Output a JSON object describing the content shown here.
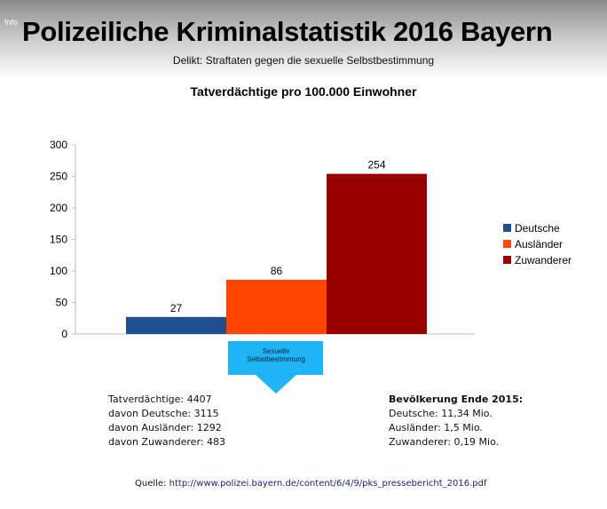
{
  "header": {
    "info": "Info",
    "title": "Polizeiliche Kriminalstatistik 2016 Bayern",
    "subtitle": "Delikt: Straftaten gegen die sexuelle Selbstbestimmung"
  },
  "chart_data": {
    "type": "bar",
    "title": "Tatverdächtige pro 100.000  Einwohner",
    "categories": [
      "Sexuelle Selbstbestimmung"
    ],
    "series": [
      {
        "name": "Deutsche",
        "values": [
          27
        ],
        "color": "#1f4e8c"
      },
      {
        "name": "Ausländer",
        "values": [
          86
        ],
        "color": "#ff4500"
      },
      {
        "name": "Zuwanderer",
        "values": [
          254
        ],
        "color": "#990000"
      }
    ],
    "ylim": [
      0,
      300
    ],
    "yticks": [
      0,
      50,
      100,
      150,
      200,
      250,
      300
    ],
    "legend": "right"
  },
  "callout": {
    "label": "Sexuelle Selbstbestimmung",
    "color": "#1eb4f5"
  },
  "left_stats": [
    "Tatverdächtige: 4407",
    "davon Deutsche: 3115",
    "davon Ausländer: 1292",
    "davon Zuwanderer: 483"
  ],
  "right_stats": {
    "heading": "Bevölkerung Ende 2015:",
    "lines": [
      "Deutsche: 11,34 Mio.",
      "Ausländer: 1,5 Mio.",
      "Zuwanderer: 0,19 Mio."
    ]
  },
  "source": {
    "label": "Quelle:",
    "url": "http://www.polizei.bayern.de/content/6/4/9/pks_pressebericht_2016.pdf"
  }
}
